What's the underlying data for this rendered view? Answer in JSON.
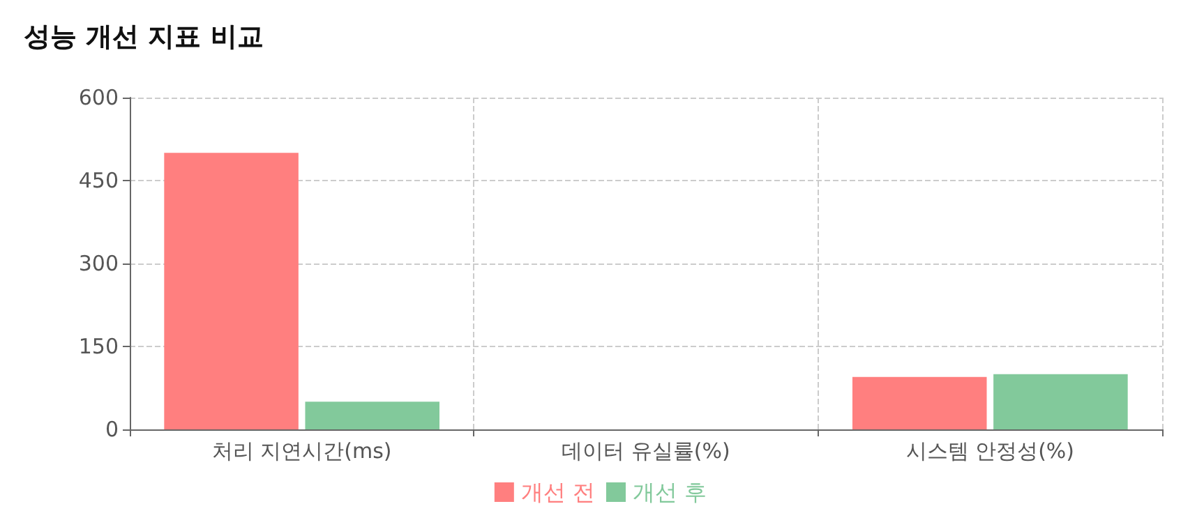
{
  "chart_data": {
    "type": "bar",
    "title": "성능 개선 지표 비교",
    "categories": [
      "처리 지연시간(ms)",
      "데이터 유실률(%)",
      "시스템 안정성(%)"
    ],
    "series": [
      {
        "name": "개선 전",
        "color": "#ff7f7f",
        "values": [
          500,
          0,
          95
        ]
      },
      {
        "name": "개선 후",
        "color": "#82c99b",
        "values": [
          50,
          0,
          100
        ]
      }
    ],
    "ylim": [
      0,
      600
    ],
    "yticks": [
      0,
      150,
      300,
      450,
      600
    ],
    "grid": true,
    "legend": "bottom"
  }
}
